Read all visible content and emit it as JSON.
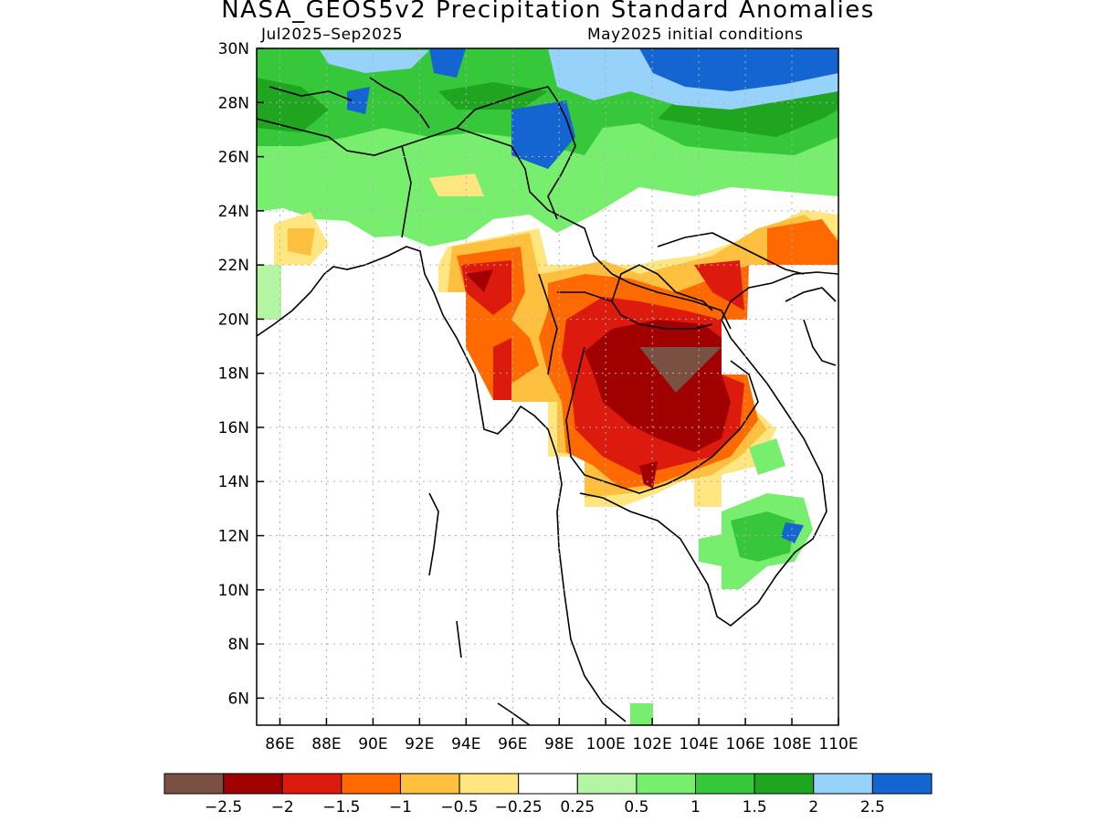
{
  "header": {
    "title": "NASA_GEOS5v2 Precipitation Standard Anomalies",
    "period": "Jul2025–Sep2025",
    "init": "May2025 initial conditions"
  },
  "map": {
    "lon_range": [
      85,
      110
    ],
    "lat_range": [
      5,
      30
    ],
    "lon_ticks": [
      {
        "value": 86,
        "label": "86E"
      },
      {
        "value": 88,
        "label": "88E"
      },
      {
        "value": 90,
        "label": "90E"
      },
      {
        "value": 92,
        "label": "92E"
      },
      {
        "value": 94,
        "label": "94E"
      },
      {
        "value": 96,
        "label": "96E"
      },
      {
        "value": 98,
        "label": "98E"
      },
      {
        "value": 100,
        "label": "100E"
      },
      {
        "value": 102,
        "label": "102E"
      },
      {
        "value": 104,
        "label": "104E"
      },
      {
        "value": 106,
        "label": "106E"
      },
      {
        "value": 108,
        "label": "108E"
      },
      {
        "value": 110,
        "label": "110E"
      }
    ],
    "lat_ticks": [
      {
        "value": 30,
        "label": "30N"
      },
      {
        "value": 28,
        "label": "28N"
      },
      {
        "value": 26,
        "label": "26N"
      },
      {
        "value": 24,
        "label": "24N"
      },
      {
        "value": 22,
        "label": "22N"
      },
      {
        "value": 20,
        "label": "20N"
      },
      {
        "value": 18,
        "label": "18N"
      },
      {
        "value": 16,
        "label": "16N"
      },
      {
        "value": 14,
        "label": "14N"
      },
      {
        "value": 12,
        "label": "12N"
      },
      {
        "value": 10,
        "label": "10N"
      },
      {
        "value": 8,
        "label": "8N"
      },
      {
        "value": 6,
        "label": "6N"
      }
    ]
  },
  "colorbar": {
    "colors": [
      "#7a5043",
      "#a00000",
      "#dd1a0e",
      "#ff6a00",
      "#ffc040",
      "#ffe680",
      "#ffffff",
      "#b4f5a4",
      "#78ee6e",
      "#36c83a",
      "#1fa51f",
      "#96d2fa",
      "#1464d2"
    ],
    "labels": [
      "−2.5",
      "−2",
      "−1.5",
      "−1",
      "−0.5",
      "−0.25",
      "0.25",
      "0.5",
      "1",
      "1.5",
      "2",
      "2.5"
    ]
  }
}
